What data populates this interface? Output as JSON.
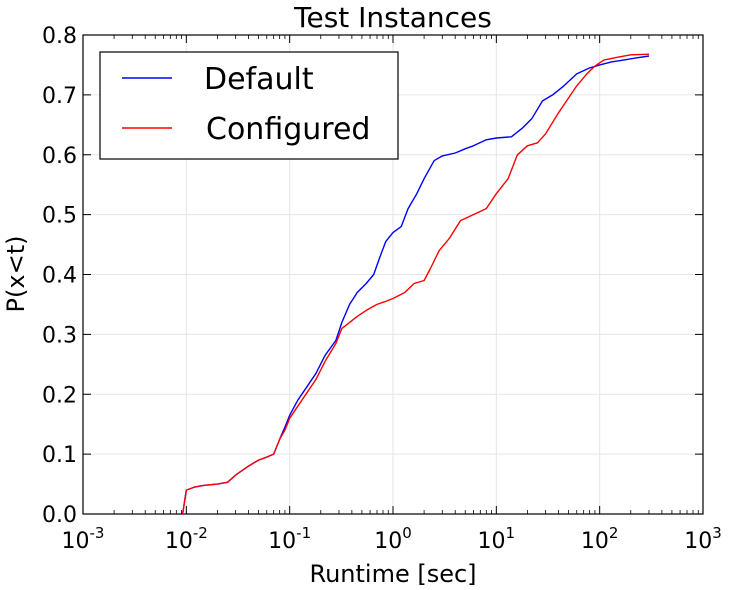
{
  "chart_data": {
    "type": "line",
    "title": "Test Instances",
    "xlabel": "Runtime [sec]",
    "ylabel": "P(x<t)",
    "xscale": "log",
    "xlim": [
      0.001,
      1000
    ],
    "ylim": [
      0.0,
      0.8
    ],
    "xticks": [
      {
        "base": "10",
        "exp": "-3",
        "value": 0.001
      },
      {
        "base": "10",
        "exp": "-2",
        "value": 0.01
      },
      {
        "base": "10",
        "exp": "-1",
        "value": 0.1
      },
      {
        "base": "10",
        "exp": "0",
        "value": 1
      },
      {
        "base": "10",
        "exp": "1",
        "value": 10
      },
      {
        "base": "10",
        "exp": "2",
        "value": 100
      },
      {
        "base": "10",
        "exp": "3",
        "value": 1000
      }
    ],
    "yticks": [
      "0.0",
      "0.1",
      "0.2",
      "0.3",
      "0.4",
      "0.5",
      "0.6",
      "0.7",
      "0.8"
    ],
    "grid": true,
    "legend_position": "top-left",
    "series": [
      {
        "name": "Default",
        "color": "#0000ff",
        "points": [
          [
            0.0092,
            0.0
          ],
          [
            0.0096,
            0.02
          ],
          [
            0.01,
            0.04
          ],
          [
            0.012,
            0.045
          ],
          [
            0.015,
            0.048
          ],
          [
            0.02,
            0.05
          ],
          [
            0.025,
            0.053
          ],
          [
            0.03,
            0.065
          ],
          [
            0.04,
            0.08
          ],
          [
            0.05,
            0.09
          ],
          [
            0.06,
            0.095
          ],
          [
            0.07,
            0.1
          ],
          [
            0.08,
            0.125
          ],
          [
            0.09,
            0.145
          ],
          [
            0.1,
            0.165
          ],
          [
            0.12,
            0.19
          ],
          [
            0.15,
            0.215
          ],
          [
            0.18,
            0.235
          ],
          [
            0.22,
            0.265
          ],
          [
            0.28,
            0.29
          ],
          [
            0.32,
            0.32
          ],
          [
            0.38,
            0.35
          ],
          [
            0.45,
            0.37
          ],
          [
            0.55,
            0.385
          ],
          [
            0.65,
            0.4
          ],
          [
            0.75,
            0.43
          ],
          [
            0.85,
            0.455
          ],
          [
            1.0,
            0.47
          ],
          [
            1.2,
            0.48
          ],
          [
            1.4,
            0.51
          ],
          [
            1.7,
            0.535
          ],
          [
            2.0,
            0.56
          ],
          [
            2.5,
            0.59
          ],
          [
            3.0,
            0.598
          ],
          [
            4.0,
            0.603
          ],
          [
            5.0,
            0.61
          ],
          [
            6.0,
            0.615
          ],
          [
            8.0,
            0.625
          ],
          [
            10.0,
            0.628
          ],
          [
            14.0,
            0.63
          ],
          [
            18.0,
            0.645
          ],
          [
            22.0,
            0.66
          ],
          [
            28.0,
            0.69
          ],
          [
            35.0,
            0.7
          ],
          [
            45.0,
            0.715
          ],
          [
            60.0,
            0.735
          ],
          [
            80.0,
            0.745
          ],
          [
            100.0,
            0.75
          ],
          [
            130.0,
            0.755
          ],
          [
            170.0,
            0.758
          ],
          [
            230.0,
            0.762
          ],
          [
            300.0,
            0.765
          ]
        ]
      },
      {
        "name": "Configured",
        "color": "#ff0000",
        "points": [
          [
            0.0092,
            0.0
          ],
          [
            0.0096,
            0.02
          ],
          [
            0.01,
            0.04
          ],
          [
            0.012,
            0.045
          ],
          [
            0.015,
            0.048
          ],
          [
            0.02,
            0.05
          ],
          [
            0.025,
            0.053
          ],
          [
            0.03,
            0.065
          ],
          [
            0.04,
            0.08
          ],
          [
            0.05,
            0.09
          ],
          [
            0.06,
            0.095
          ],
          [
            0.07,
            0.1
          ],
          [
            0.08,
            0.125
          ],
          [
            0.09,
            0.14
          ],
          [
            0.1,
            0.16
          ],
          [
            0.12,
            0.18
          ],
          [
            0.15,
            0.205
          ],
          [
            0.18,
            0.225
          ],
          [
            0.22,
            0.255
          ],
          [
            0.28,
            0.285
          ],
          [
            0.32,
            0.31
          ],
          [
            0.38,
            0.32
          ],
          [
            0.45,
            0.33
          ],
          [
            0.55,
            0.34
          ],
          [
            0.7,
            0.35
          ],
          [
            0.85,
            0.355
          ],
          [
            1.0,
            0.36
          ],
          [
            1.3,
            0.37
          ],
          [
            1.6,
            0.385
          ],
          [
            2.0,
            0.39
          ],
          [
            2.3,
            0.41
          ],
          [
            2.8,
            0.44
          ],
          [
            3.5,
            0.46
          ],
          [
            4.5,
            0.49
          ],
          [
            6.0,
            0.5
          ],
          [
            8.0,
            0.51
          ],
          [
            10.0,
            0.535
          ],
          [
            13.0,
            0.56
          ],
          [
            16.0,
            0.6
          ],
          [
            20.0,
            0.615
          ],
          [
            25.0,
            0.62
          ],
          [
            30.0,
            0.635
          ],
          [
            40.0,
            0.67
          ],
          [
            50.0,
            0.695
          ],
          [
            60.0,
            0.715
          ],
          [
            75.0,
            0.735
          ],
          [
            90.0,
            0.748
          ],
          [
            110.0,
            0.758
          ],
          [
            150.0,
            0.763
          ],
          [
            200.0,
            0.767
          ],
          [
            300.0,
            0.768
          ]
        ]
      }
    ]
  }
}
